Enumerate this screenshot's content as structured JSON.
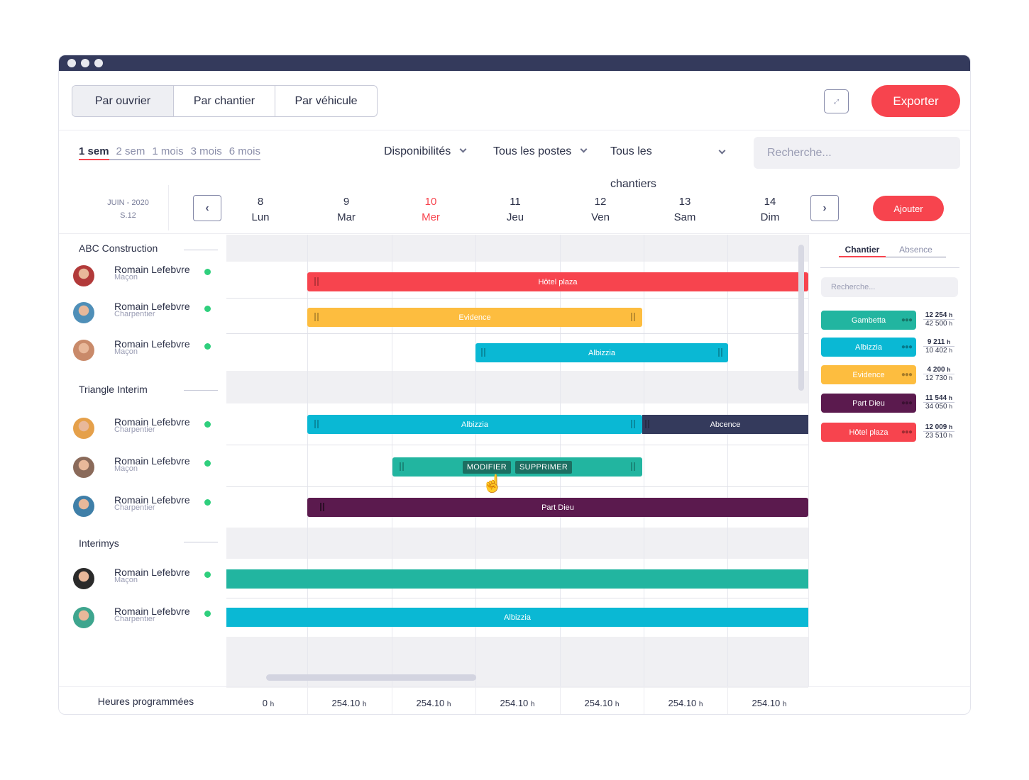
{
  "views": [
    "Par ouvrier",
    "Par chantier",
    "Par véhicule"
  ],
  "export_label": "Exporter",
  "ranges": [
    "1 sem",
    "2 sem",
    "1 mois",
    "3 mois",
    "6 mois"
  ],
  "filters": {
    "dispo": "Disponibilités",
    "postes": "Tous les postes",
    "chantiers_line1": "Tous les",
    "chantiers_line2": "chantiers"
  },
  "search_placeholder": "Recherche...",
  "period": {
    "month": "JUIN - 2020",
    "week": "S.12"
  },
  "days": [
    {
      "num": "8",
      "name": "Lun"
    },
    {
      "num": "9",
      "name": "Mar"
    },
    {
      "num": "10",
      "name": "Mer"
    },
    {
      "num": "11",
      "name": "Jeu"
    },
    {
      "num": "12",
      "name": "Ven"
    },
    {
      "num": "13",
      "name": "Sam"
    },
    {
      "num": "14",
      "name": "Dim"
    }
  ],
  "add_label": "Ajouter",
  "groups": [
    "ABC Construction",
    "Triangle Interim",
    "Interimys"
  ],
  "workers": [
    {
      "name": "Romain Lefebvre",
      "role": "Maçon"
    },
    {
      "name": "Romain Lefebvre",
      "role": "Charpentier"
    },
    {
      "name": "Romain Lefebvre",
      "role": "Maçon"
    },
    {
      "name": "Romain Lefebvre",
      "role": "Charpentier"
    },
    {
      "name": "Romain Lefebvre",
      "role": "Maçon"
    },
    {
      "name": "Romain Lefebvre",
      "role": "Charpentier"
    },
    {
      "name": "Romain Lefebvre",
      "role": "Maçon"
    },
    {
      "name": "Romain Lefebvre",
      "role": "Charpentier"
    }
  ],
  "bars": {
    "b1": "Hôtel plaza",
    "b2": "Evidence",
    "b3": "Albizzia",
    "b4": "Albizzia",
    "b5": "Abcence",
    "b7": "Part Dieu",
    "b9": "Albizzia"
  },
  "actions": {
    "modify": "MODIFIER",
    "delete": "SUPPRIMER"
  },
  "footer": {
    "label": "Heures programmées",
    "values": [
      "0",
      "254.10",
      "254.10",
      "254.10",
      "254.10",
      "254.10",
      "254.10"
    ],
    "unit": "h"
  },
  "side": {
    "tabs": [
      "Chantier",
      "Absence"
    ],
    "search_placeholder": "Recherche...",
    "items": [
      {
        "name": "Gambetta",
        "done": "12 254",
        "total": "42 500",
        "color": "#22b5a0"
      },
      {
        "name": "Albizzia",
        "done": "9 211",
        "total": "10 402",
        "color": "#0ab8d4"
      },
      {
        "name": "Evidence",
        "done": "4 200",
        "total": "12 730",
        "color": "#fdbd3f"
      },
      {
        "name": "Part Dieu",
        "done": "11 544",
        "total": "34 050",
        "color": "#5b1a4e"
      },
      {
        "name": "Hôtel plaza",
        "done": "12 009",
        "total": "23 510",
        "color": "#f7444e"
      }
    ],
    "unit": "h"
  },
  "colors": {
    "red": "#f7444e",
    "yellow": "#fdbd3f",
    "cyan": "#0ab8d4",
    "teal": "#22b5a0",
    "purple": "#5b1a4e",
    "navy": "#343a5c"
  }
}
